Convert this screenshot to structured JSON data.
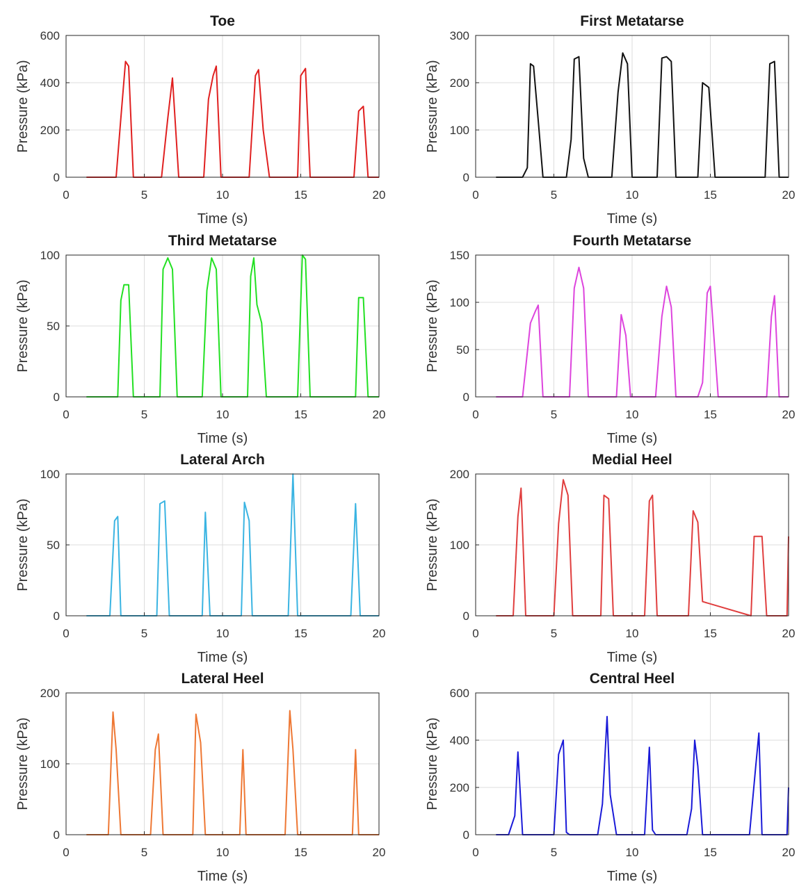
{
  "chart_data": [
    {
      "type": "line",
      "title": "Toe",
      "xlabel": "Time (s)",
      "ylabel": "Pressure (kPa)",
      "xlim": [
        0,
        20
      ],
      "ylim": [
        0,
        600
      ],
      "xticks": [
        0,
        5,
        10,
        15,
        20
      ],
      "yticks": [
        0,
        200,
        400,
        600
      ],
      "grid": true,
      "color": "#e02020",
      "series": [
        {
          "x": [
            1.3,
            3.2,
            3.5,
            3.8,
            4.0,
            4.3,
            6.1,
            6.5,
            6.8,
            7.2,
            8.8,
            9.1,
            9.4,
            9.6,
            9.9,
            11.7,
            12.1,
            12.3,
            12.6,
            13.0,
            14.8,
            15.0,
            15.3,
            15.6,
            18.4,
            18.7,
            19.0,
            19.3,
            20.0
          ],
          "y": [
            0,
            0,
            250,
            490,
            470,
            0,
            0,
            250,
            420,
            0,
            0,
            330,
            430,
            470,
            0,
            0,
            430,
            455,
            200,
            0,
            0,
            430,
            460,
            0,
            0,
            280,
            300,
            0,
            0
          ]
        }
      ]
    },
    {
      "type": "line",
      "title": "First Metatarse",
      "xlabel": "Time (s)",
      "ylabel": "Pressure (kPa)",
      "xlim": [
        0,
        20
      ],
      "ylim": [
        0,
        300
      ],
      "xticks": [
        0,
        5,
        10,
        15,
        20
      ],
      "yticks": [
        0,
        100,
        200,
        300
      ],
      "grid": true,
      "color": "#111111",
      "series": [
        {
          "x": [
            1.3,
            3.0,
            3.3,
            3.5,
            3.7,
            4.0,
            4.3,
            5.8,
            6.1,
            6.3,
            6.6,
            6.9,
            7.2,
            8.7,
            9.1,
            9.4,
            9.7,
            10.0,
            11.6,
            11.9,
            12.2,
            12.5,
            12.8,
            14.2,
            14.5,
            14.9,
            15.3,
            18.5,
            18.8,
            19.1,
            19.4,
            20.0
          ],
          "y": [
            0,
            0,
            20,
            240,
            235,
            120,
            0,
            0,
            80,
            250,
            255,
            40,
            0,
            0,
            180,
            263,
            240,
            0,
            0,
            252,
            255,
            245,
            0,
            0,
            200,
            190,
            0,
            0,
            240,
            245,
            0,
            0
          ]
        }
      ]
    },
    {
      "type": "line",
      "title": "Third Metatarse",
      "xlabel": "Time (s)",
      "ylabel": "Pressure (kPa)",
      "xlim": [
        0,
        20
      ],
      "ylim": [
        0,
        100
      ],
      "xticks": [
        0,
        5,
        10,
        15,
        20
      ],
      "yticks": [
        0,
        50,
        100
      ],
      "grid": true,
      "color": "#22e022",
      "series": [
        {
          "x": [
            1.3,
            3.3,
            3.5,
            3.7,
            4.0,
            4.3,
            6.0,
            6.2,
            6.5,
            6.8,
            7.1,
            8.7,
            9.0,
            9.3,
            9.6,
            9.9,
            11.6,
            11.8,
            12.0,
            12.2,
            12.5,
            12.8,
            14.8,
            15.1,
            15.3,
            15.6,
            18.5,
            18.7,
            19.0,
            19.3,
            20.0
          ],
          "y": [
            0,
            0,
            68,
            79,
            79,
            0,
            0,
            90,
            98,
            90,
            0,
            0,
            75,
            98,
            90,
            0,
            0,
            85,
            98,
            65,
            52,
            0,
            0,
            100,
            97,
            0,
            0,
            70,
            70,
            0,
            0
          ]
        }
      ]
    },
    {
      "type": "line",
      "title": "Fourth Metatarse",
      "xlabel": "Time (s)",
      "ylabel": "Pressure (kPa)",
      "xlim": [
        0,
        20
      ],
      "ylim": [
        0,
        150
      ],
      "xticks": [
        0,
        5,
        10,
        15,
        20
      ],
      "yticks": [
        0,
        50,
        100,
        150
      ],
      "grid": true,
      "color": "#dd44dd",
      "series": [
        {
          "x": [
            1.3,
            3.0,
            3.5,
            3.8,
            4.0,
            4.3,
            6.0,
            6.3,
            6.6,
            6.9,
            7.2,
            9.0,
            9.3,
            9.6,
            9.9,
            11.5,
            11.9,
            12.2,
            12.5,
            12.8,
            14.2,
            14.5,
            14.8,
            15.0,
            15.5,
            18.6,
            18.9,
            19.1,
            19.4,
            20.0
          ],
          "y": [
            0,
            0,
            78,
            90,
            97,
            0,
            0,
            115,
            137,
            115,
            0,
            0,
            87,
            65,
            0,
            0,
            85,
            117,
            95,
            0,
            0,
            15,
            110,
            117,
            0,
            0,
            85,
            107,
            0,
            0
          ]
        }
      ]
    },
    {
      "type": "line",
      "title": "Lateral Arch",
      "xlabel": "Time (s)",
      "ylabel": "Pressure (kPa)",
      "xlim": [
        0,
        20
      ],
      "ylim": [
        0,
        100
      ],
      "xticks": [
        0,
        5,
        10,
        15,
        20
      ],
      "yticks": [
        0,
        50,
        100
      ],
      "grid": true,
      "color": "#3ab4e2",
      "series": [
        {
          "x": [
            1.3,
            2.8,
            3.1,
            3.3,
            3.5,
            5.8,
            6.0,
            6.3,
            6.6,
            8.7,
            8.9,
            9.2,
            11.2,
            11.4,
            11.7,
            11.9,
            14.2,
            14.5,
            14.8,
            18.2,
            18.5,
            18.8,
            20.0
          ],
          "y": [
            0,
            0,
            67,
            70,
            0,
            0,
            79,
            81,
            0,
            0,
            73,
            0,
            0,
            80,
            67,
            0,
            0,
            100,
            0,
            0,
            79,
            0,
            0
          ]
        }
      ]
    },
    {
      "type": "line",
      "title": "Medial Heel",
      "xlabel": "Time (s)",
      "ylabel": "Pressure (kPa)",
      "xlim": [
        0,
        20
      ],
      "ylim": [
        0,
        200
      ],
      "xticks": [
        0,
        5,
        10,
        15,
        20
      ],
      "yticks": [
        0,
        100,
        200
      ],
      "grid": true,
      "color": "#e03e3e",
      "series": [
        {
          "x": [
            1.3,
            2.4,
            2.7,
            2.9,
            3.2,
            5.0,
            5.3,
            5.6,
            5.9,
            6.2,
            8.0,
            8.2,
            8.5,
            8.8,
            10.8,
            11.1,
            11.3,
            11.6,
            13.6,
            13.9,
            14.2,
            14.5,
            17.6,
            17.8,
            18.3,
            18.6,
            19.9,
            20.0
          ],
          "y": [
            0,
            0,
            140,
            180,
            0,
            0,
            130,
            192,
            170,
            0,
            0,
            170,
            165,
            0,
            0,
            162,
            170,
            0,
            0,
            148,
            132,
            20,
            0,
            112,
            112,
            0,
            0,
            112
          ]
        }
      ]
    },
    {
      "type": "line",
      "title": "Lateral Heel",
      "xlabel": "Time (s)",
      "ylabel": "Pressure (kPa)",
      "xlim": [
        0,
        20
      ],
      "ylim": [
        0,
        200
      ],
      "xticks": [
        0,
        5,
        10,
        15,
        20
      ],
      "yticks": [
        0,
        100,
        200
      ],
      "grid": true,
      "color": "#ee7733",
      "series": [
        {
          "x": [
            1.3,
            2.7,
            3.0,
            3.2,
            3.5,
            5.4,
            5.7,
            5.9,
            6.2,
            8.1,
            8.3,
            8.6,
            8.9,
            11.1,
            11.3,
            11.5,
            14.0,
            14.3,
            14.5,
            14.8,
            18.3,
            18.5,
            18.7,
            20.0
          ],
          "y": [
            0,
            0,
            173,
            120,
            0,
            0,
            120,
            142,
            0,
            0,
            170,
            130,
            0,
            0,
            120,
            0,
            0,
            175,
            120,
            0,
            0,
            120,
            0,
            0
          ]
        }
      ]
    },
    {
      "type": "line",
      "title": "Central Heel",
      "xlabel": "Time (s)",
      "ylabel": "Pressure (kPa)",
      "xlim": [
        0,
        20
      ],
      "ylim": [
        0,
        600
      ],
      "xticks": [
        0,
        5,
        10,
        15,
        20
      ],
      "yticks": [
        0,
        200,
        400,
        600
      ],
      "grid": true,
      "color": "#1a1ad8",
      "series": [
        {
          "x": [
            1.3,
            2.1,
            2.5,
            2.7,
            3.0,
            3.3,
            5.0,
            5.3,
            5.6,
            5.8,
            6.0,
            7.8,
            8.1,
            8.4,
            8.6,
            9.0,
            10.8,
            11.1,
            11.3,
            11.5,
            11.7,
            13.5,
            13.8,
            14.0,
            14.2,
            14.5,
            17.5,
            17.9,
            18.1,
            18.3,
            19.9,
            20.0
          ],
          "y": [
            0,
            0,
            80,
            350,
            0,
            0,
            0,
            340,
            400,
            10,
            0,
            0,
            130,
            500,
            170,
            0,
            0,
            370,
            20,
            0,
            0,
            0,
            110,
            400,
            290,
            0,
            0,
            290,
            430,
            0,
            0,
            200
          ]
        }
      ]
    }
  ]
}
